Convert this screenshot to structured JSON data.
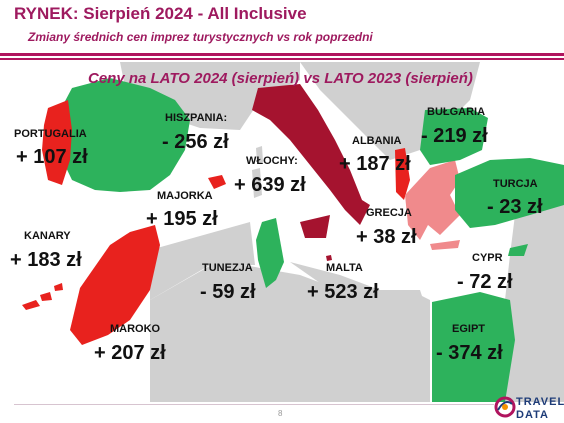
{
  "header": {
    "title": "RYNEK: Sierpień 2024 - All Inclusive",
    "subtitle": "Zmiany średnich cen imprez turystycznych vs rok poprzedni"
  },
  "map": {
    "heading": "Ceny na LATO 2024 (sierpień) vs  LATO 2023 (sierpień)",
    "colors": {
      "increase": "#e8221e",
      "decrease": "#2db25c",
      "italy": "#a5132f",
      "greece": "#f08a8c",
      "land": "#d0d0d0",
      "sea": "#ffffff"
    },
    "countries": [
      {
        "key": "portugalia",
        "label": "PORTUGALIA",
        "value": "+ 107 zł"
      },
      {
        "key": "hiszpania",
        "label": "HISZPANIA:",
        "value": "- 256 zł"
      },
      {
        "key": "wlochy",
        "label": "WŁOCHY:",
        "value": "+ 639 zł"
      },
      {
        "key": "albania",
        "label": "ALBANIA",
        "value": "+ 187 zł"
      },
      {
        "key": "bulgaria",
        "label": "BUŁGARIA",
        "value": "- 219 zł"
      },
      {
        "key": "turcja",
        "label": "TURCJA",
        "value": "- 23 zł"
      },
      {
        "key": "majorka",
        "label": "MAJORKA",
        "value": "+ 195 zł"
      },
      {
        "key": "grecja",
        "label": "GRECJA",
        "value": "+ 38 zł"
      },
      {
        "key": "kanary",
        "label": "KANARY",
        "value": "+ 183 zł"
      },
      {
        "key": "tunezja",
        "label": "TUNEZJA",
        "value": "- 59 zł"
      },
      {
        "key": "malta",
        "label": "MALTA",
        "value": "+ 523 zł"
      },
      {
        "key": "cypr",
        "label": "CYPR",
        "value": "- 72 zł"
      },
      {
        "key": "maroko",
        "label": "MAROKO",
        "value": "+ 207 zł"
      },
      {
        "key": "egipt",
        "label": "EGIPT",
        "value": "- 374 zł"
      }
    ]
  },
  "footer": {
    "page_number": "8",
    "logo_line1": "TRAVEL",
    "logo_line2": "DATA"
  }
}
